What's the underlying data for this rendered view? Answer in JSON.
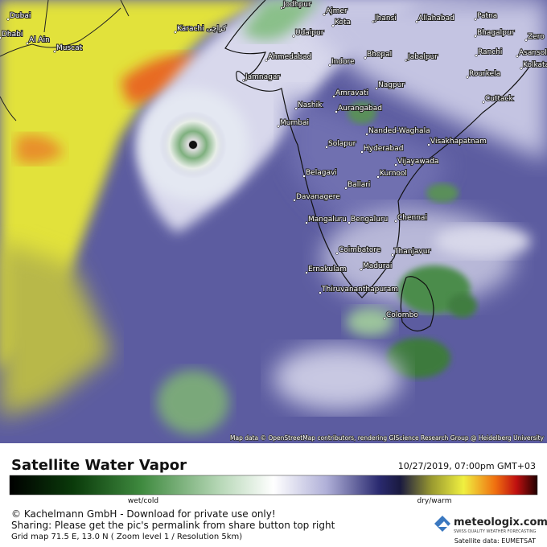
{
  "map": {
    "cities": [
      "Jodhpur",
      "Ajmer",
      "Dubai",
      "Kota",
      "Jhansi",
      "Allahabad",
      "Patna",
      "Karachi کراچی",
      "Udaipur",
      "Bhagalpur",
      "Zero",
      "Dhabi",
      "Al Ain",
      "Muscat",
      "Ahmedabad",
      "Bhopal",
      "Jabalpur",
      "Ranchi",
      "Asansol",
      "Indore",
      "Kolkata",
      "Jamnagar",
      "Nagpur",
      "Rourkela",
      "Amravati",
      "Cuttack",
      "Nashik",
      "Aurangabad",
      "Mumbai",
      "Nanded-Waghala",
      "Visakhapatnam",
      "Solapur",
      "Hyderabad",
      "Vijayawada",
      "Belagavi",
      "Kurnool",
      "Ballari",
      "Davanagere",
      "Mangaluru",
      "Bengaluru",
      "Chennai",
      "Coimbatore",
      "Thanjavur",
      "Ernakulam",
      "Madurai",
      "Thiruvananthapuram",
      "Colombo"
    ],
    "attribution": "Map data © OpenStreetMap contributors, rendering GIScience Research Group @ Heidelberg University"
  },
  "footer": {
    "title": "Satellite Water Vapor",
    "timestamp": "10/27/2019, 07:00pm GMT+03",
    "legend_low": "wet/cold",
    "legend_high": "dry/warm",
    "copyright": "© Kachelmann GmbH - Download for private use only!",
    "sharing": "Sharing: Please get the pic's permalink from share button top right",
    "grid": "Grid map 71.5 E, 13.0 N ( Zoom level 1 / Resolution 5km)",
    "brand": "meteologix.com",
    "brand_tagline": "SWISS QUALITY WEATHER FORECASTING",
    "data_source": "Satellite data: EUMETSAT"
  }
}
